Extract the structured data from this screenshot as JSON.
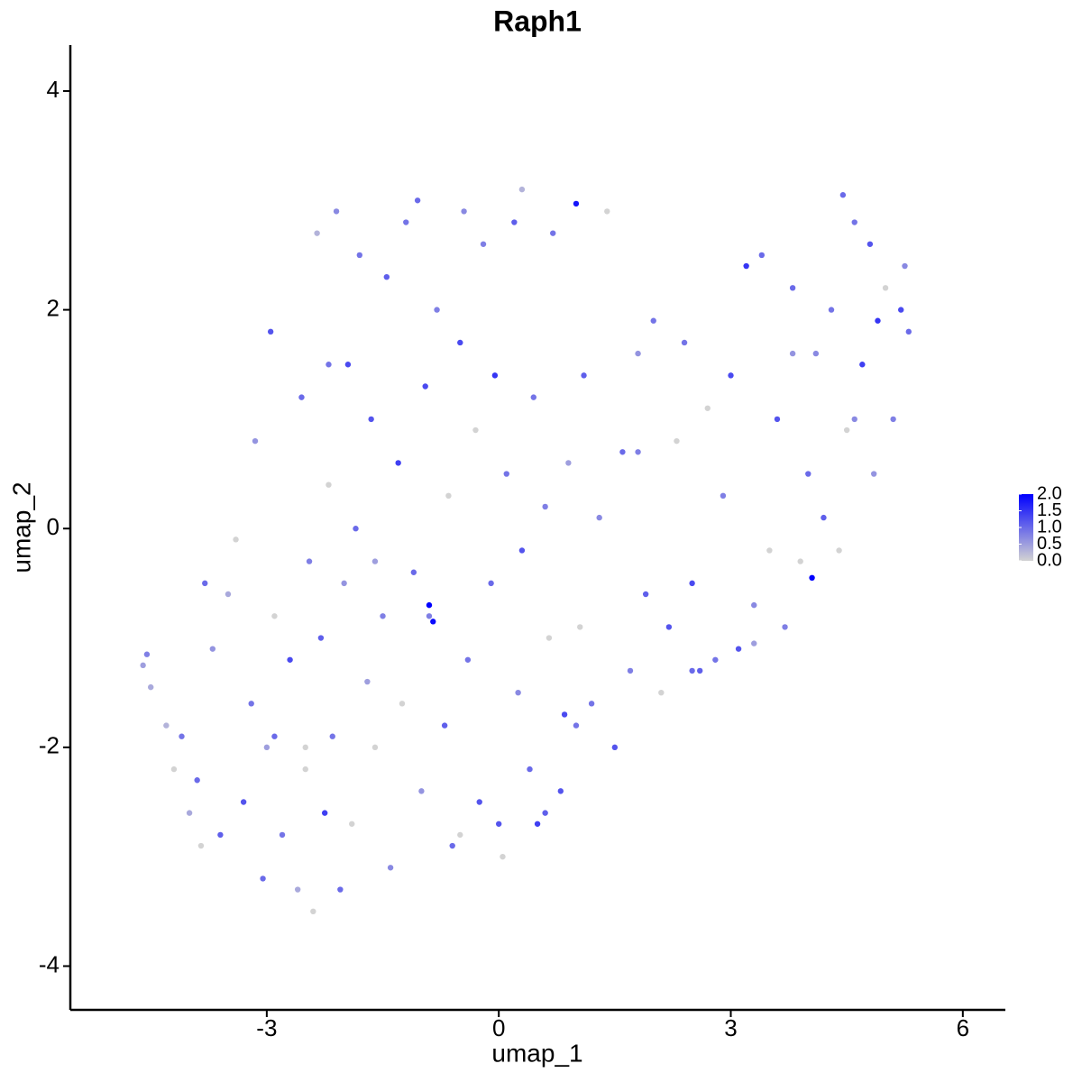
{
  "chart_data": {
    "type": "scatter",
    "title": "Raph1",
    "x_label": "umap_1",
    "y_label": "umap_2",
    "xlim": [
      -5.54,
      6.55
    ],
    "ylim": [
      -4.4,
      4.42
    ],
    "xticks": [
      -3,
      0,
      3,
      6
    ],
    "yticks": [
      -4,
      -2,
      0,
      2,
      4
    ],
    "color_low": "#d3d3d3",
    "color_high": "#0000ff",
    "color_lim": [
      0,
      2.0
    ],
    "color_ticks": [
      {
        "value": 0,
        "label": "0.0"
      },
      {
        "value": 0.5,
        "label": "0.5"
      },
      {
        "value": 1.0,
        "label": "1.0"
      },
      {
        "value": 1.5,
        "label": "1.5"
      },
      {
        "value": 2.0,
        "label": "2.0"
      }
    ],
    "x": [
      -4.6,
      -4.55,
      -4.5,
      -4.3,
      -4.2,
      -4.1,
      -4.0,
      -3.9,
      -3.85,
      -3.7,
      -3.6,
      -3.5,
      -3.4,
      -3.3,
      -3.2,
      -3.15,
      -3.05,
      -3.0,
      -2.95,
      -2.9,
      -2.8,
      -2.7,
      -2.6,
      -2.55,
      -2.5,
      -2.45,
      -2.4,
      -2.35,
      -2.3,
      -2.25,
      -2.2,
      -2.15,
      -2.1,
      -2.05,
      -2.0,
      -1.95,
      -1.9,
      -1.85,
      -1.8,
      -1.7,
      -1.65,
      -1.6,
      -1.5,
      -1.45,
      -1.4,
      -1.3,
      -1.25,
      -1.2,
      -1.1,
      -1.05,
      -1.0,
      -0.95,
      -0.9,
      -0.85,
      -0.8,
      -0.7,
      -0.65,
      -0.6,
      -0.5,
      -0.45,
      -0.4,
      -0.3,
      -0.25,
      -0.2,
      -0.1,
      -0.05,
      0.0,
      0.05,
      0.1,
      0.2,
      0.25,
      0.3,
      0.4,
      0.45,
      0.5,
      0.6,
      0.65,
      0.7,
      0.8,
      0.85,
      0.9,
      1.0,
      1.05,
      1.1,
      1.2,
      1.3,
      1.4,
      1.5,
      1.6,
      1.7,
      1.8,
      1.9,
      2.0,
      2.1,
      2.2,
      2.3,
      2.4,
      2.5,
      2.6,
      2.7,
      2.8,
      2.9,
      3.0,
      3.1,
      3.2,
      3.3,
      3.4,
      3.5,
      3.6,
      3.7,
      3.8,
      3.9,
      4.0,
      4.05,
      4.1,
      4.2,
      4.3,
      4.4,
      4.45,
      4.5,
      4.6,
      4.7,
      4.8,
      4.85,
      4.9,
      5.0,
      5.1,
      5.2,
      5.25,
      5.3,
      -2.9,
      -2.5,
      -1.6,
      -0.9,
      0.3,
      1.0,
      2.5,
      3.3,
      4.6,
      -3.8,
      -2.2,
      -0.5,
      0.6,
      1.8,
      3.8
    ],
    "values": [
      -1.25,
      -1.15,
      -1.45,
      -1.8,
      -2.2,
      -1.9,
      -2.6,
      -2.3,
      -2.9,
      -1.1,
      -2.8,
      -0.6,
      -0.1,
      -2.5,
      -1.6,
      0.8,
      -3.2,
      -2.0,
      1.8,
      -0.8,
      -2.8,
      -1.2,
      -3.3,
      1.2,
      -2.2,
      -0.3,
      -3.5,
      2.7,
      -1.0,
      -2.6,
      0.4,
      -1.9,
      2.9,
      -3.3,
      -0.5,
      1.5,
      -2.7,
      0.0,
      2.5,
      -1.4,
      1.0,
      -2.0,
      -0.8,
      2.3,
      -3.1,
      0.6,
      -1.6,
      2.8,
      -0.4,
      3.0,
      -2.4,
      1.3,
      -0.7,
      -0.85,
      2.0,
      -1.8,
      0.3,
      -2.9,
      1.7,
      2.9,
      -1.2,
      0.9,
      -2.5,
      2.6,
      -0.5,
      1.4,
      -2.7,
      -3.0,
      0.5,
      2.8,
      -1.5,
      3.1,
      -2.2,
      1.2,
      -2.7,
      0.2,
      -1.0,
      2.7,
      -2.4,
      -1.7,
      0.6,
      2.97,
      -0.9,
      1.4,
      -1.6,
      0.1,
      2.9,
      -2.0,
      0.7,
      -1.3,
      1.6,
      -0.6,
      1.9,
      -1.5,
      -0.9,
      0.8,
      1.7,
      -0.5,
      -1.3,
      1.1,
      -1.2,
      0.3,
      1.4,
      -1.1,
      2.4,
      -0.7,
      2.5,
      -0.2,
      1.0,
      -0.9,
      2.2,
      -0.3,
      0.5,
      -0.45,
      1.6,
      0.1,
      2.0,
      -0.2,
      3.05,
      0.9,
      2.8,
      1.5,
      2.6,
      0.5,
      1.9,
      2.2,
      1.0,
      2.0,
      2.4,
      1.8,
      -1.9,
      -2.0,
      -0.3,
      -0.8,
      -0.2,
      -1.8,
      -1.3,
      -1.05,
      1.0,
      -0.5,
      1.5,
      -2.8,
      -2.6,
      0.7,
      1.6
    ],
    "expression": [
      0.5,
      0.8,
      0.4,
      0.3,
      0,
      0.9,
      0.4,
      1.0,
      0,
      0.6,
      1.1,
      0.4,
      0,
      1.2,
      0.9,
      0.6,
      1.0,
      0.5,
      1.2,
      0,
      0.9,
      1.3,
      0.4,
      1.0,
      0,
      0.8,
      0,
      0.3,
      1.1,
      1.4,
      0,
      0.9,
      0.7,
      1.0,
      0.6,
      1.3,
      0,
      1.0,
      0.9,
      0.5,
      1.2,
      0,
      0.8,
      1.1,
      0.7,
      1.4,
      0,
      0.9,
      1.0,
      1.0,
      0.6,
      1.3,
      2.0,
      1.9,
      0.8,
      1.1,
      0,
      1.0,
      1.3,
      0.7,
      0.9,
      0,
      1.2,
      0.8,
      1.0,
      1.5,
      1.2,
      0,
      0.9,
      1.1,
      0.7,
      0.3,
      1.0,
      0.9,
      1.4,
      0.8,
      0,
      0.9,
      1.2,
      1.3,
      0.5,
      1.8,
      0,
      1.1,
      0.9,
      0.7,
      0,
      1.2,
      1.0,
      0.8,
      0.6,
      1.1,
      0.9,
      0,
      1.2,
      0,
      0.9,
      1.3,
      1.1,
      0,
      0.9,
      0.8,
      1.3,
      1.2,
      1.5,
      0.7,
      1.0,
      0,
      1.2,
      0.8,
      1.0,
      0,
      1.0,
      2.0,
      0.7,
      1.1,
      0.9,
      0,
      1.0,
      0,
      0.9,
      1.4,
      1.2,
      0.6,
      1.5,
      0,
      0.8,
      1.3,
      0.7,
      1.0,
      1.0,
      0,
      0.5,
      0.8,
      1.2,
      0.9,
      1.0,
      0.5,
      0.7,
      1.0,
      0.9,
      0,
      1.1,
      0.8,
      0.6
    ]
  }
}
